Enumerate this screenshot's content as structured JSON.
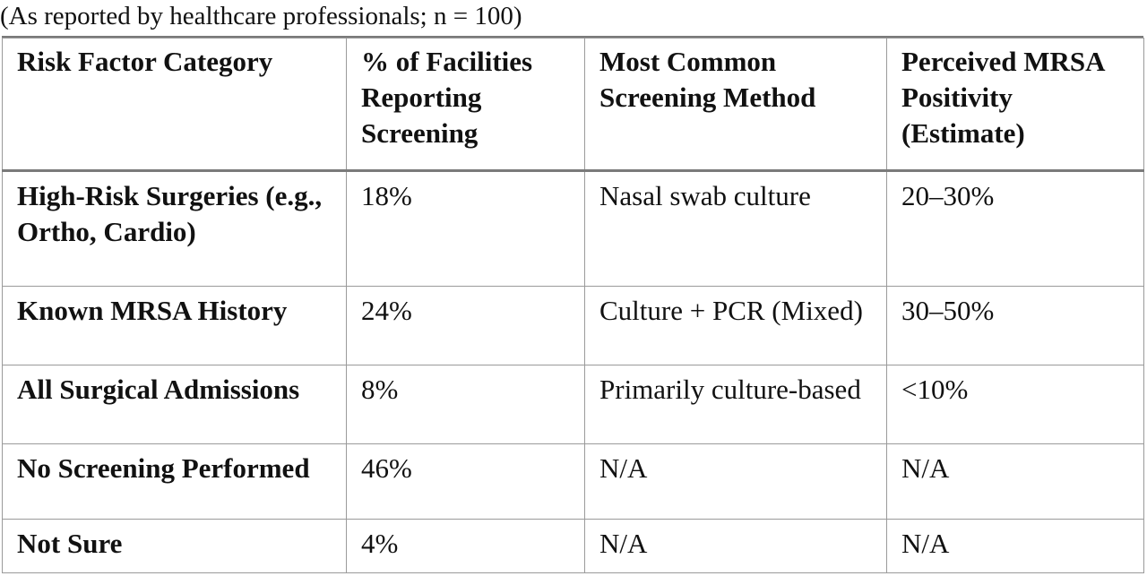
{
  "caption": "(As reported by healthcare professionals; n = 100)",
  "table": {
    "headers": [
      "Risk Factor Category",
      "% of Facilities Reporting Screening",
      "Most Common Screening Method",
      "Perceived MRSA Positivity (Estimate)"
    ],
    "rows": [
      {
        "category": "High-Risk Surgeries (e.g., Ortho, Cardio)",
        "percent": "18%",
        "method": "Nasal swab culture",
        "positivity": "20–30%"
      },
      {
        "category": "Known MRSA History",
        "percent": "24%",
        "method": "Culture + PCR (Mixed)",
        "positivity": "30–50%"
      },
      {
        "category": "All Surgical Admissions",
        "percent": "8%",
        "method": "Primarily culture-based",
        "positivity": "<10%"
      },
      {
        "category": "No Screening Performed",
        "percent": "46%",
        "method": "N/A",
        "positivity": "N/A"
      },
      {
        "category": "Not Sure",
        "percent": "4%",
        "method": "N/A",
        "positivity": "N/A"
      }
    ]
  }
}
